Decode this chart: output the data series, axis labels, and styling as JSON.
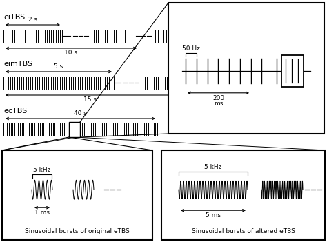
{
  "bg_color": "#ffffff",
  "line_color": "#000000",
  "title_font": 8,
  "small_font": 6.5,
  "eiTBS_label": "eiTBS",
  "eimTBS_label": "eimTBS",
  "ecTBS_label": "ecTBS",
  "arrow_2s": "2 s",
  "arrow_10s": "10 s",
  "arrow_5s": "5 s",
  "arrow_15s": "15 s",
  "arrow_40s": "40 s",
  "arrow_50hz": "50 Hz",
  "arrow_200ms_1": "200",
  "arrow_200ms_2": "ms",
  "arrow_5khz_1": "5 kHz",
  "arrow_1ms": "1 ms",
  "arrow_5ms": "5 ms",
  "label_orig": "Sinusoidal bursts of original eTBS",
  "label_alt": "Sinusoidal bursts of altered eTBS"
}
